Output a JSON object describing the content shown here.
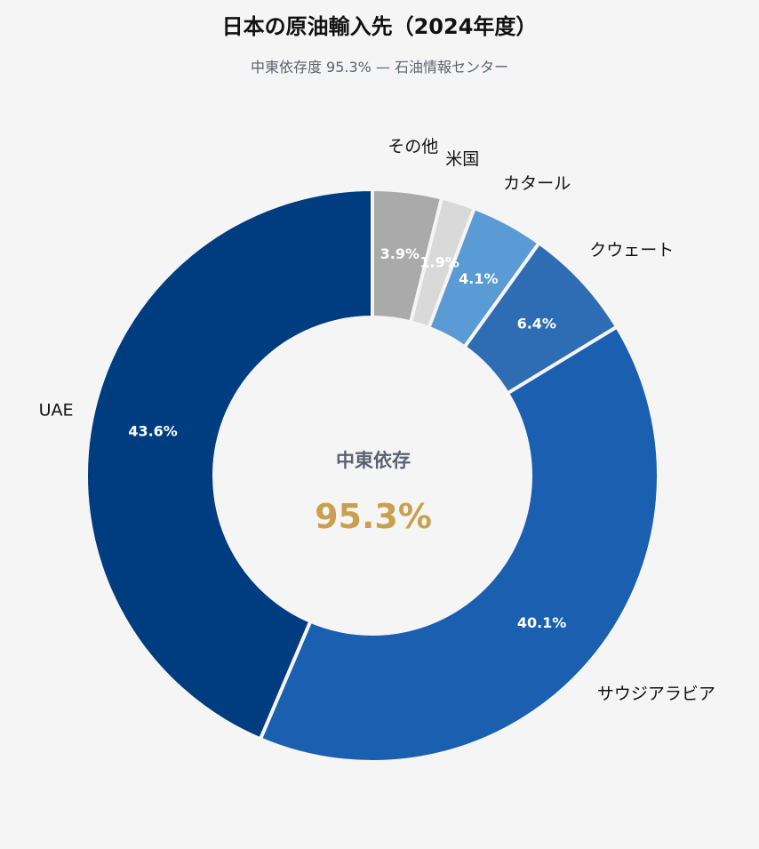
{
  "chart_data": {
    "type": "pie",
    "title": "日本の原油輸入先（2024年度）",
    "subtitle": "中東依存度 95.3% — 石油情報センター",
    "categories": [
      "その他",
      "米国",
      "カタール",
      "クウェート",
      "サウジアラビア",
      "UAE"
    ],
    "values": [
      3.9,
      1.9,
      4.1,
      6.4,
      40.1,
      43.6
    ],
    "value_labels": [
      "3.9%",
      "1.9%",
      "4.1%",
      "6.4%",
      "40.1%",
      "43.6%"
    ],
    "colors": [
      "#aaaaaa",
      "#d9d9d9",
      "#5b9bd5",
      "#2e6db4",
      "#1a5fb0",
      "#003d80"
    ],
    "donut": true,
    "start_angle": "12 o'clock, clockwise",
    "center": {
      "label": "中東依存",
      "value": "95.3%",
      "value_color": "#c9a050"
    }
  }
}
